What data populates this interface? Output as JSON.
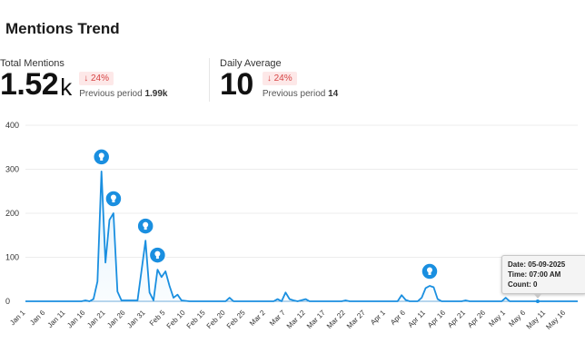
{
  "header": {
    "title": "Mentions Trend"
  },
  "kpis": {
    "total": {
      "label": "Total Mentions",
      "value": "1.52",
      "suffix": "k",
      "delta": "↓ 24%",
      "prev_label": "Previous period",
      "prev_value": "1.99k"
    },
    "average": {
      "label": "Daily Average",
      "value": "10",
      "delta": "↓ 24%",
      "prev_label": "Previous period",
      "prev_value": "14"
    }
  },
  "tooltip": {
    "date_label": "Date:",
    "date": "05-09-2025",
    "time_label": "Time:",
    "time": "07:00 AM",
    "count_label": "Count:",
    "count": "0"
  },
  "colors": {
    "line": "#1a8fe0",
    "fill": "#dbeefb",
    "marker": "#1a8fe0",
    "delta_bg": "#fde8e8",
    "delta_text": "#d64545"
  },
  "chart_data": {
    "type": "area",
    "title": "",
    "xlabel": "",
    "ylabel": "",
    "ylim": [
      0,
      400
    ],
    "yticks": [
      0,
      100,
      200,
      300,
      400
    ],
    "xlim": [
      "2025-01-01",
      "2025-05-19"
    ],
    "grid": true,
    "xtick_labels": [
      {
        "date": "2025-01-01",
        "label": "Jan 1"
      },
      {
        "date": "2025-01-06",
        "label": "Jan 6"
      },
      {
        "date": "2025-01-11",
        "label": "Jan 11"
      },
      {
        "date": "2025-01-16",
        "label": "Jan 16"
      },
      {
        "date": "2025-01-21",
        "label": "Jan 21"
      },
      {
        "date": "2025-01-26",
        "label": "Jan 26"
      },
      {
        "date": "2025-01-31",
        "label": "Jan 31"
      },
      {
        "date": "2025-02-05",
        "label": "Feb 5"
      },
      {
        "date": "2025-02-10",
        "label": "Feb 10"
      },
      {
        "date": "2025-02-15",
        "label": "Feb 15"
      },
      {
        "date": "2025-02-20",
        "label": "Feb 20"
      },
      {
        "date": "2025-02-25",
        "label": "Feb 25"
      },
      {
        "date": "2025-03-02",
        "label": "Mar 2"
      },
      {
        "date": "2025-03-07",
        "label": "Mar 7"
      },
      {
        "date": "2025-03-12",
        "label": "Mar 12"
      },
      {
        "date": "2025-03-17",
        "label": "Mar 17"
      },
      {
        "date": "2025-03-22",
        "label": "Mar 22"
      },
      {
        "date": "2025-03-27",
        "label": "Mar 27"
      },
      {
        "date": "2025-04-01",
        "label": "Apr 1"
      },
      {
        "date": "2025-04-06",
        "label": "Apr 6"
      },
      {
        "date": "2025-04-11",
        "label": "Apr 11"
      },
      {
        "date": "2025-04-16",
        "label": "Apr 16"
      },
      {
        "date": "2025-04-21",
        "label": "Apr 21"
      },
      {
        "date": "2025-04-26",
        "label": "Apr 26"
      },
      {
        "date": "2025-05-01",
        "label": "May 1"
      },
      {
        "date": "2025-05-06",
        "label": "May 6"
      },
      {
        "date": "2025-05-11",
        "label": "May 11"
      },
      {
        "date": "2025-05-16",
        "label": "May 16"
      }
    ],
    "series": [
      {
        "points": [
          [
            "2025-01-01",
            0
          ],
          [
            "2025-01-15",
            0
          ],
          [
            "2025-01-16",
            2
          ],
          [
            "2025-01-17",
            0
          ],
          [
            "2025-01-18",
            5
          ],
          [
            "2025-01-19",
            45
          ],
          [
            "2025-01-20",
            295
          ],
          [
            "2025-01-21",
            88
          ],
          [
            "2025-01-22",
            185
          ],
          [
            "2025-01-23",
            200
          ],
          [
            "2025-01-24",
            22
          ],
          [
            "2025-01-25",
            2
          ],
          [
            "2025-01-29",
            2
          ],
          [
            "2025-01-30",
            70
          ],
          [
            "2025-01-31",
            138
          ],
          [
            "2025-02-01",
            20
          ],
          [
            "2025-02-02",
            2
          ],
          [
            "2025-02-03",
            72
          ],
          [
            "2025-02-04",
            55
          ],
          [
            "2025-02-05",
            68
          ],
          [
            "2025-02-06",
            35
          ],
          [
            "2025-02-07",
            8
          ],
          [
            "2025-02-08",
            15
          ],
          [
            "2025-02-09",
            2
          ],
          [
            "2025-02-11",
            0
          ],
          [
            "2025-02-20",
            0
          ],
          [
            "2025-02-21",
            8
          ],
          [
            "2025-02-22",
            0
          ],
          [
            "2025-03-04",
            0
          ],
          [
            "2025-03-05",
            5
          ],
          [
            "2025-03-06",
            0
          ],
          [
            "2025-03-07",
            20
          ],
          [
            "2025-03-08",
            5
          ],
          [
            "2025-03-09",
            2
          ],
          [
            "2025-03-10",
            0
          ],
          [
            "2025-03-12",
            5
          ],
          [
            "2025-03-13",
            0
          ],
          [
            "2025-03-21",
            0
          ],
          [
            "2025-03-22",
            2
          ],
          [
            "2025-03-23",
            0
          ],
          [
            "2025-04-04",
            0
          ],
          [
            "2025-04-05",
            14
          ],
          [
            "2025-04-06",
            3
          ],
          [
            "2025-04-07",
            0
          ],
          [
            "2025-04-09",
            0
          ],
          [
            "2025-04-10",
            8
          ],
          [
            "2025-04-11",
            30
          ],
          [
            "2025-04-12",
            35
          ],
          [
            "2025-04-13",
            32
          ],
          [
            "2025-04-14",
            5
          ],
          [
            "2025-04-15",
            0
          ],
          [
            "2025-04-20",
            0
          ],
          [
            "2025-04-21",
            2
          ],
          [
            "2025-04-22",
            0
          ],
          [
            "2025-04-30",
            0
          ],
          [
            "2025-05-01",
            8
          ],
          [
            "2025-05-02",
            0
          ],
          [
            "2025-05-09",
            0
          ],
          [
            "2025-05-19",
            0
          ]
        ]
      }
    ],
    "annotations": [
      {
        "date": "2025-01-20",
        "value": 295,
        "icon": "lightbulb-icon"
      },
      {
        "date": "2025-01-23",
        "value": 200,
        "icon": "lightbulb-icon"
      },
      {
        "date": "2025-01-31",
        "value": 138,
        "icon": "lightbulb-icon"
      },
      {
        "date": "2025-02-03",
        "value": 72,
        "icon": "lightbulb-icon"
      },
      {
        "date": "2025-04-12",
        "value": 35,
        "icon": "lightbulb-icon"
      }
    ],
    "hover_point": {
      "date": "2025-05-09",
      "value": 0
    }
  }
}
